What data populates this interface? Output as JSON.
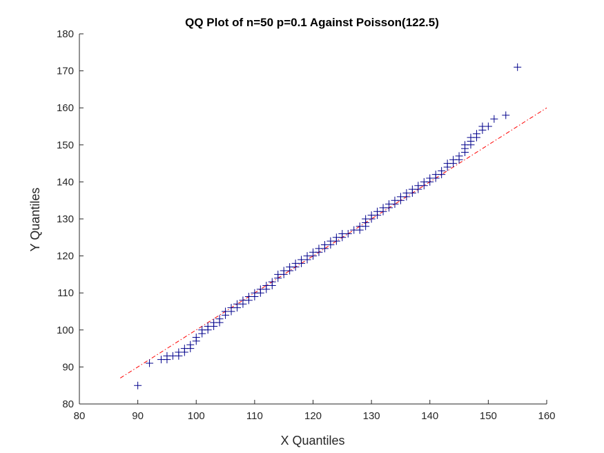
{
  "chart_data": {
    "type": "scatter",
    "title": "QQ Plot of n=50 p=0.1 Against Poisson(122.5)",
    "xlabel": "X Quantiles",
    "ylabel": "Y Quantiles",
    "xlim": [
      80,
      160
    ],
    "ylim": [
      80,
      180
    ],
    "xticks": [
      "80",
      "90",
      "100",
      "110",
      "120",
      "130",
      "140",
      "150",
      "160"
    ],
    "yticks": [
      "80",
      "90",
      "100",
      "110",
      "120",
      "130",
      "140",
      "150",
      "160",
      "170",
      "180"
    ],
    "grid": false,
    "marker": "+",
    "marker_color": "#00008b",
    "reference_line": {
      "style": "dash-dot",
      "color": "#ff0000",
      "x": [
        87,
        160
      ],
      "y": [
        87,
        160
      ]
    },
    "points": [
      [
        90,
        85
      ],
      [
        92,
        91
      ],
      [
        94,
        92
      ],
      [
        95,
        92
      ],
      [
        95,
        93
      ],
      [
        96,
        93
      ],
      [
        97,
        93
      ],
      [
        97,
        94
      ],
      [
        98,
        94
      ],
      [
        98,
        95
      ],
      [
        99,
        95
      ],
      [
        99,
        96
      ],
      [
        100,
        97
      ],
      [
        100,
        98
      ],
      [
        101,
        99
      ],
      [
        101,
        100
      ],
      [
        102,
        100
      ],
      [
        102,
        101
      ],
      [
        103,
        101
      ],
      [
        103,
        102
      ],
      [
        104,
        102
      ],
      [
        104,
        103
      ],
      [
        105,
        104
      ],
      [
        105,
        105
      ],
      [
        106,
        105
      ],
      [
        106,
        106
      ],
      [
        107,
        106
      ],
      [
        107,
        107
      ],
      [
        108,
        107
      ],
      [
        108,
        108
      ],
      [
        109,
        108
      ],
      [
        109,
        109
      ],
      [
        110,
        109
      ],
      [
        110,
        110
      ],
      [
        111,
        110
      ],
      [
        111,
        111
      ],
      [
        112,
        111
      ],
      [
        112,
        112
      ],
      [
        113,
        112
      ],
      [
        113,
        113
      ],
      [
        114,
        114
      ],
      [
        114,
        115
      ],
      [
        115,
        115
      ],
      [
        115,
        116
      ],
      [
        116,
        116
      ],
      [
        116,
        117
      ],
      [
        117,
        117
      ],
      [
        117,
        118
      ],
      [
        118,
        118
      ],
      [
        118,
        119
      ],
      [
        119,
        119
      ],
      [
        119,
        120
      ],
      [
        120,
        120
      ],
      [
        120,
        121
      ],
      [
        121,
        121
      ],
      [
        121,
        122
      ],
      [
        122,
        122
      ],
      [
        122,
        123
      ],
      [
        123,
        123
      ],
      [
        123,
        124
      ],
      [
        124,
        124
      ],
      [
        124,
        125
      ],
      [
        125,
        125
      ],
      [
        125,
        126
      ],
      [
        126,
        126
      ],
      [
        127,
        127
      ],
      [
        128,
        127
      ],
      [
        128,
        128
      ],
      [
        129,
        128
      ],
      [
        129,
        129
      ],
      [
        129,
        130
      ],
      [
        130,
        130
      ],
      [
        130,
        131
      ],
      [
        131,
        131
      ],
      [
        131,
        132
      ],
      [
        132,
        132
      ],
      [
        132,
        133
      ],
      [
        133,
        133
      ],
      [
        133,
        134
      ],
      [
        134,
        134
      ],
      [
        134,
        135
      ],
      [
        135,
        135
      ],
      [
        135,
        136
      ],
      [
        136,
        136
      ],
      [
        136,
        137
      ],
      [
        137,
        137
      ],
      [
        137,
        138
      ],
      [
        138,
        138
      ],
      [
        138,
        139
      ],
      [
        139,
        139
      ],
      [
        139,
        140
      ],
      [
        140,
        140
      ],
      [
        140,
        141
      ],
      [
        141,
        141
      ],
      [
        141,
        142
      ],
      [
        142,
        142
      ],
      [
        142,
        143
      ],
      [
        143,
        144
      ],
      [
        143,
        145
      ],
      [
        144,
        145
      ],
      [
        144,
        146
      ],
      [
        145,
        146
      ],
      [
        145,
        147
      ],
      [
        146,
        148
      ],
      [
        146,
        149
      ],
      [
        146,
        150
      ],
      [
        147,
        150
      ],
      [
        147,
        151
      ],
      [
        147,
        152
      ],
      [
        148,
        152
      ],
      [
        148,
        153
      ],
      [
        149,
        154
      ],
      [
        149,
        155
      ],
      [
        150,
        155
      ],
      [
        151,
        157
      ],
      [
        153,
        158
      ],
      [
        155,
        171
      ]
    ]
  }
}
